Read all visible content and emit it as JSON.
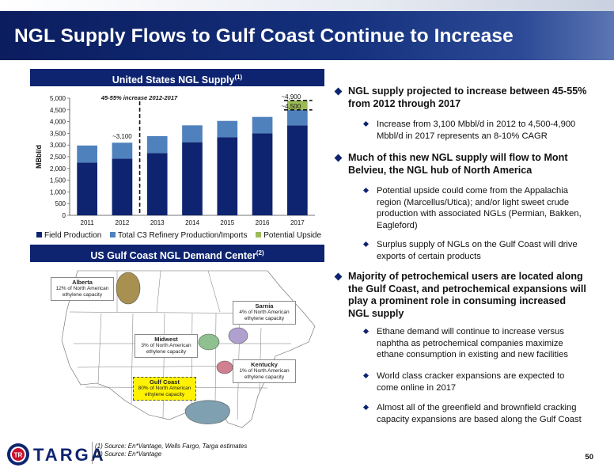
{
  "title": "NGL Supply Flows to Gulf Coast Continue to Increase",
  "section_supply": {
    "label": "United States NGL Supply",
    "sup": "(1)"
  },
  "section_demand": {
    "label": "US Gulf Coast NGL Demand Center",
    "sup": "(2)"
  },
  "colors": {
    "field": "#0e2470",
    "c3": "#4f81bd",
    "upside": "#9bbb59",
    "title_bg": "#0e2470"
  },
  "chart_data": {
    "type": "bar",
    "stacked": true,
    "categories": [
      "2011",
      "2012",
      "2013",
      "2014",
      "2015",
      "2016",
      "2017"
    ],
    "series": [
      {
        "name": "Field Production",
        "values": [
          2250,
          2420,
          2660,
          3120,
          3330,
          3500,
          3840
        ]
      },
      {
        "name": "Total C3 Refinery Production/Imports",
        "values": [
          730,
          680,
          720,
          720,
          700,
          700,
          660
        ]
      },
      {
        "name": "Potential Upside",
        "values": [
          0,
          0,
          0,
          0,
          0,
          0,
          400
        ]
      }
    ],
    "ylabel": "MBbl/d",
    "ylim": [
      0,
      5000
    ],
    "yticks": [
      "0",
      "500",
      "1,000",
      "1,500",
      "2,000",
      "2,500",
      "3,000",
      "3,500",
      "4,000",
      "4,500",
      "5,000"
    ],
    "annotations": {
      "range_label": "45-55% increase 2012-2017",
      "v2012": "~3,100",
      "v2017_high": "~4,900",
      "v2017_low": "~4,500"
    },
    "legend_position": "bottom"
  },
  "map_labels": [
    {
      "name": "Alberta",
      "desc": "12% of North American ethylene capacity"
    },
    {
      "name": "Sarnia",
      "desc": "4% of North American ethylene capacity"
    },
    {
      "name": "Midwest",
      "desc": "3% of North American ethylene capacity"
    },
    {
      "name": "Kentucky",
      "desc": "1% of North American ethylene capacity"
    },
    {
      "name": "Gulf Coast",
      "desc": "80% of North American ethylene capacity"
    }
  ],
  "bullets": [
    {
      "level": 1,
      "text": "NGL supply projected to increase between 45-55% from 2012 through 2017"
    },
    {
      "level": 2,
      "text": "Increase from 3,100 Mbbl/d in 2012 to 4,500-4,900 Mbbl/d in 2017 represents an 8-10% CAGR"
    },
    {
      "level": 1,
      "text": "Much of this new NGL supply will flow to Mont Belvieu, the NGL hub of North America"
    },
    {
      "level": 2,
      "text": "Potential upside could come from the Appalachia region (Marcellus/Utica); and/or light sweet crude production with associated NGLs (Permian, Bakken, Eagleford)"
    },
    {
      "level": 2,
      "text": "Surplus supply of NGLs on the Gulf Coast will drive exports of certain products"
    },
    {
      "level": 1,
      "text": "Majority of petrochemical users are located along the Gulf Coast, and petrochemical expansions will play a prominent role in consuming increased NGL supply"
    },
    {
      "level": 2,
      "text": "Ethane demand will continue to increase versus naphtha as petrochemical companies maximize ethane consumption in existing and new facilities"
    },
    {
      "level": 2,
      "text": "World class cracker expansions are expected to come online in 2017"
    },
    {
      "level": 2,
      "text": "Almost all of the greenfield and brownfield cracking capacity expansions are based along the Gulf Coast"
    }
  ],
  "footer": {
    "logo_text": "TARGA",
    "logo_mark": "TR",
    "sources": [
      "(1)    Source: En*Vantage, Wells Fargo, Targa estimates",
      "(2)    Source: En*Vantage"
    ],
    "page_number": "50"
  }
}
